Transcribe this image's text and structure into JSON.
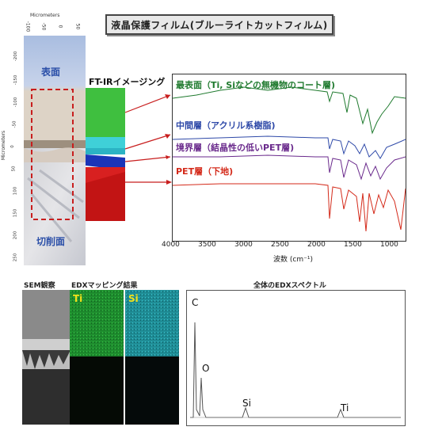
{
  "title": "液晶保護フィルム(ブルーライトカットフィルム)",
  "micro": {
    "top_axis_label": "Micrometers",
    "top_ticks": [
      "-100",
      "-50",
      "0",
      "50"
    ],
    "side_axis_label": "Micrometers",
    "side_ticks": [
      "-200",
      "-150",
      "-100",
      "-50",
      "0",
      "50",
      "100",
      "150",
      "200",
      "250"
    ],
    "surface_label": "表面",
    "cut_label": "切削面"
  },
  "ftir": {
    "imaging_label": "FT-IRイメージング",
    "layers": [
      {
        "label": "最表面（Ti, Siなどの無機物のコート層)",
        "color": "#1f7a2e"
      },
      {
        "label": "中間層（アクリル系樹脂)",
        "color": "#2e49a8"
      },
      {
        "label": "境界層（結晶性の低いPET層)",
        "color": "#6a2a8c"
      },
      {
        "label": "PET層（下地)",
        "color": "#d42a1a"
      }
    ],
    "x_ticks": [
      "4000",
      "3500",
      "3000",
      "2500",
      "2000",
      "1500",
      "1000"
    ],
    "x_label": "波数 (cm⁻¹)"
  },
  "sem": {
    "label": "SEM観察"
  },
  "edx_map": {
    "label": "EDXマッピング結果",
    "ti": "Ti",
    "si": "Si"
  },
  "edx_spec": {
    "label": "全体のEDXスペクトル",
    "peaks": [
      {
        "el": "C"
      },
      {
        "el": "O"
      },
      {
        "el": "Si"
      },
      {
        "el": "Ti"
      }
    ]
  }
}
